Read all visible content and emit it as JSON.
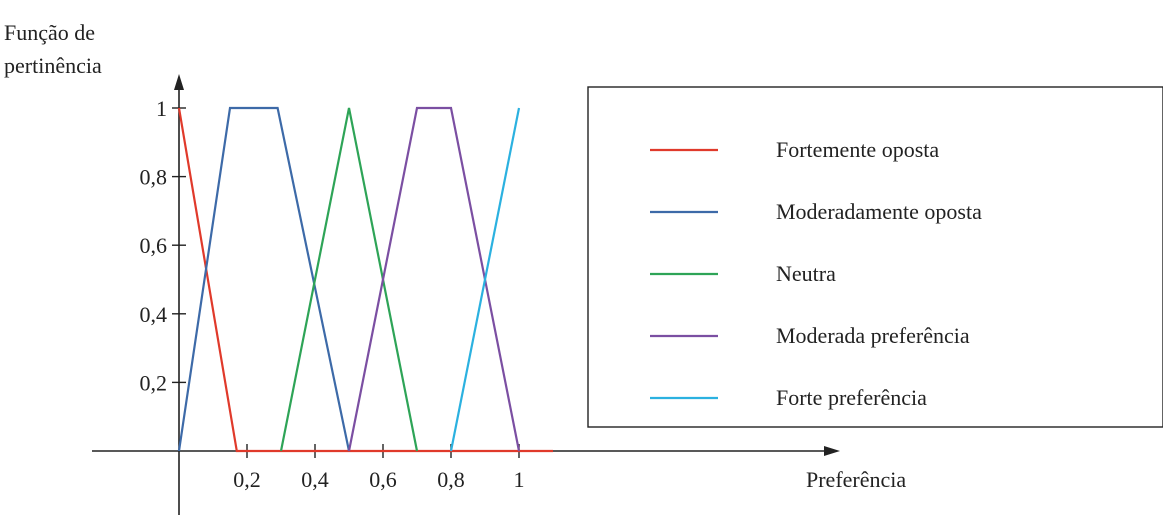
{
  "chart_data": {
    "type": "line",
    "ylabel_lines": [
      "Função de",
      "pertinência"
    ],
    "xlabel": "Preferência",
    "xlim": [
      0,
      1.1
    ],
    "ylim": [
      0,
      1
    ],
    "x_ticks": [
      {
        "value": 0.2,
        "label": "0,2"
      },
      {
        "value": 0.4,
        "label": "0,4"
      },
      {
        "value": 0.6,
        "label": "0,6"
      },
      {
        "value": 0.8,
        "label": "0,8"
      },
      {
        "value": 1.0,
        "label": "1"
      }
    ],
    "y_ticks": [
      {
        "value": 0.2,
        "label": "0,2"
      },
      {
        "value": 0.4,
        "label": "0,4"
      },
      {
        "value": 0.6,
        "label": "0,6"
      },
      {
        "value": 0.8,
        "label": "0,8"
      },
      {
        "value": 1.0,
        "label": "1"
      }
    ],
    "grid": false,
    "legend_position": "right",
    "series": [
      {
        "name": "Fortemente oposta",
        "color": "#e03a2b",
        "points": [
          [
            0,
            1
          ],
          [
            0.17,
            0
          ],
          [
            1.1,
            0
          ]
        ]
      },
      {
        "name": "Moderadamente oposta",
        "color": "#3d6aa8",
        "points": [
          [
            0,
            0
          ],
          [
            0.15,
            1
          ],
          [
            0.29,
            1
          ],
          [
            0.5,
            0
          ]
        ]
      },
      {
        "name": "Neutra",
        "color": "#2ea457",
        "points": [
          [
            0.3,
            0
          ],
          [
            0.5,
            1
          ],
          [
            0.7,
            0
          ]
        ]
      },
      {
        "name": "Moderada preferência",
        "color": "#7b4fa2",
        "points": [
          [
            0.5,
            0
          ],
          [
            0.7,
            1
          ],
          [
            0.8,
            1
          ],
          [
            1.0,
            0
          ]
        ]
      },
      {
        "name": "Forte preferência",
        "color": "#2bb1e0",
        "points": [
          [
            0.8,
            0
          ],
          [
            1.0,
            1
          ]
        ]
      }
    ]
  }
}
